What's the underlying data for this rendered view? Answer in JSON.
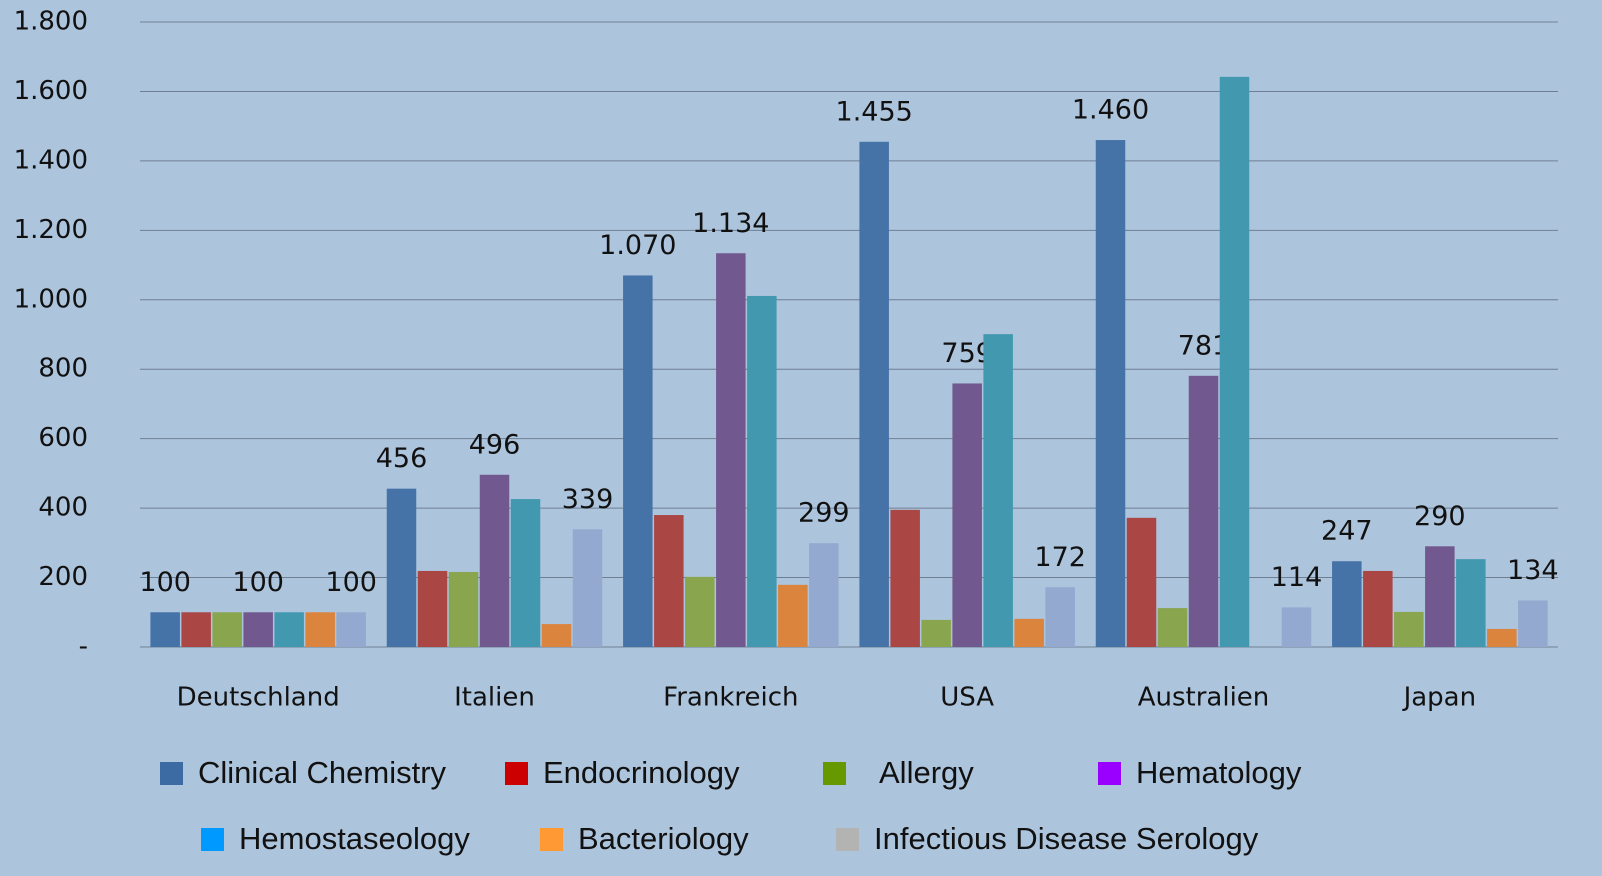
{
  "chart_data": {
    "type": "bar",
    "categories": [
      "Deutschland",
      "Italien",
      "Frankreich",
      "USA",
      "Australien",
      "Japan"
    ],
    "series": [
      {
        "name": "Clinical Chemistry",
        "color": "#4572a7",
        "legend_color": "#3c6ba3",
        "values": [
          100,
          456,
          1070,
          1455,
          1460,
          247
        ],
        "value_labels": [
          "100",
          "456",
          "1.070",
          "1.455",
          "1.460",
          "247"
        ]
      },
      {
        "name": "Endocrinology",
        "color": "#aa4643",
        "legend_color": "#cc0000",
        "values": [
          100,
          219,
          380,
          395,
          372,
          219
        ],
        "value_labels": [
          null,
          null,
          null,
          null,
          null,
          null
        ]
      },
      {
        "name": "Allergy",
        "color": "#89a54e",
        "legend_color": "#669900",
        "values": [
          100,
          216,
          202,
          78,
          112,
          101
        ],
        "value_labels": [
          null,
          null,
          null,
          null,
          null,
          null
        ]
      },
      {
        "name": "Hematology",
        "color": "#71588f",
        "legend_color": "#9900ff",
        "values": [
          100,
          496,
          1134,
          759,
          781,
          290
        ],
        "value_labels": [
          "100",
          "496",
          "1.134",
          "759",
          "781",
          "290"
        ]
      },
      {
        "name": "Hemostaseology",
        "color": "#4198af",
        "legend_color": "#0099ff",
        "values": [
          100,
          426,
          1011,
          901,
          1642,
          253
        ],
        "value_labels": [
          null,
          null,
          null,
          null,
          null,
          null
        ]
      },
      {
        "name": "Bacteriology",
        "color": "#db843d",
        "legend_color": "#ff9933",
        "values": [
          100,
          66,
          179,
          81,
          null,
          52
        ],
        "value_labels": [
          null,
          null,
          null,
          null,
          null,
          null
        ]
      },
      {
        "name": "Infectious Disease Serology",
        "color": "#93a9cf",
        "legend_color": "#b3b3b3",
        "values": [
          100,
          339,
          299,
          172,
          114,
          134
        ],
        "value_labels": [
          "100",
          "339",
          "299",
          "172",
          "114",
          "134"
        ]
      }
    ],
    "ylim": [
      0,
      1800
    ],
    "yticks": [
      {
        "value": 0,
        "label": "-"
      },
      200,
      400,
      600,
      800,
      {
        "value": 1000,
        "label": "1.000"
      },
      {
        "value": 1200,
        "label": "1.200"
      },
      {
        "value": 1400,
        "label": "1.400"
      },
      {
        "value": 1600,
        "label": "1.600"
      },
      {
        "value": 1800,
        "label": "1.800"
      }
    ],
    "grid": true
  }
}
